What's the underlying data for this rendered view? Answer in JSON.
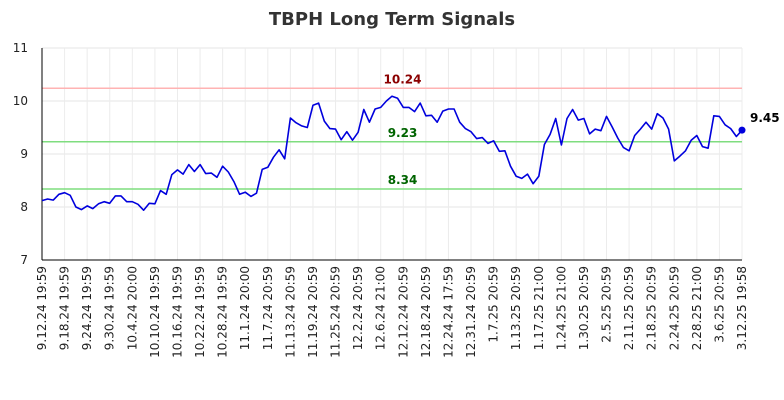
{
  "chart_data": {
    "type": "line",
    "title": "TBPH Long Term Signals",
    "xlabel": "",
    "ylabel": "",
    "ylim": [
      7,
      11
    ],
    "yticks": [
      "7",
      "8",
      "9",
      "10",
      "11"
    ],
    "xtick_labels": [
      "9.12.24 19:59",
      "9.18.24 19:59",
      "9.24.24 19:59",
      "9.30.24 19:59",
      "10.4.24 20:00",
      "10.10.24 19:59",
      "10.16.24 19:59",
      "10.22.24 19:59",
      "10.28.24 19:59",
      "11.1.24 20:00",
      "11.7.24 20:59",
      "11.13.24 20:59",
      "11.19.24 20:59",
      "11.25.24 20:59",
      "12.2.24 20:59",
      "12.6.24 21:00",
      "12.12.24 20:59",
      "12.18.24 20:59",
      "12.24.24 17:59",
      "12.31.24 20:59",
      "1.7.25 20:59",
      "1.13.25 20:59",
      "1.17.25 21:00",
      "1.24.25 21:00",
      "1.30.25 20:59",
      "2.5.25 20:59",
      "2.11.25 20:59",
      "2.18.25 20:59",
      "2.24.25 20:59",
      "2.28.25 21:00",
      "3.6.25 20:59",
      "3.12.25 19:58"
    ],
    "grid": true,
    "series": [
      {
        "color": "#0000dd",
        "values": [
          8.12,
          8.15,
          8.13,
          8.24,
          8.27,
          8.22,
          8.0,
          7.95,
          8.02,
          7.97,
          8.06,
          8.1,
          8.07,
          8.21,
          8.21,
          8.1,
          8.1,
          8.05,
          7.94,
          8.07,
          8.06,
          8.31,
          8.24,
          8.61,
          8.7,
          8.62,
          8.8,
          8.67,
          8.8,
          8.63,
          8.64,
          8.56,
          8.77,
          8.66,
          8.48,
          8.24,
          8.28,
          8.2,
          8.26,
          8.71,
          8.75,
          8.94,
          9.08,
          8.91,
          9.68,
          9.59,
          9.53,
          9.5,
          9.92,
          9.96,
          9.62,
          9.48,
          9.47,
          9.27,
          9.42,
          9.26,
          9.41,
          9.84,
          9.6,
          9.85,
          9.88,
          10.0,
          10.09,
          10.05,
          9.88,
          9.88,
          9.8,
          9.96,
          9.72,
          9.73,
          9.6,
          9.81,
          9.85,
          9.85,
          9.6,
          9.48,
          9.42,
          9.29,
          9.31,
          9.2,
          9.25,
          9.05,
          9.06,
          8.77,
          8.58,
          8.54,
          8.62,
          8.44,
          8.58,
          9.18,
          9.37,
          9.67,
          9.17,
          9.67,
          9.84,
          9.64,
          9.67,
          9.38,
          9.47,
          9.44,
          9.71,
          9.51,
          9.3,
          9.12,
          9.06,
          9.35,
          9.47,
          9.6,
          9.47,
          9.76,
          9.68,
          9.47,
          8.87,
          8.96,
          9.06,
          9.26,
          9.35,
          9.14,
          9.11,
          9.72,
          9.71,
          9.55,
          9.48,
          9.33,
          9.45
        ]
      }
    ],
    "last_value_label": "9.45",
    "reference_lines": [
      {
        "value": 10.24,
        "label": "10.24",
        "line_color": "#ffb3b3",
        "label_color": "#8b0000"
      },
      {
        "value": 9.23,
        "label": "9.23",
        "line_color": "#7fdd7f",
        "label_color": "#006400"
      },
      {
        "value": 8.34,
        "label": "8.34",
        "line_color": "#7fdd7f",
        "label_color": "#006400"
      }
    ]
  }
}
